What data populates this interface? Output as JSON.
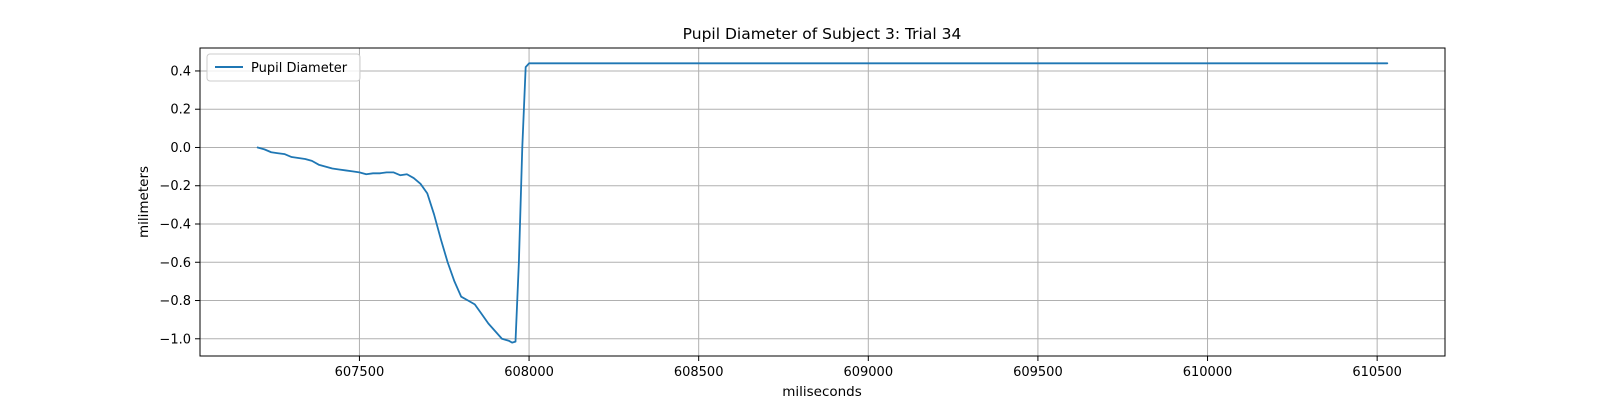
{
  "chart_data": {
    "type": "line",
    "title": "Pupil Diameter of Subject 3: Trial 34",
    "xlabel": "miliseconds",
    "ylabel": "milimeters",
    "xlim": [
      607030,
      610700
    ],
    "ylim": [
      -1.09,
      0.52
    ],
    "xticks": [
      607500,
      608000,
      608500,
      609000,
      609500,
      610000,
      610500
    ],
    "xtick_labels": [
      "607500",
      "608000",
      "608500",
      "609000",
      "609500",
      "610000",
      "610500"
    ],
    "yticks": [
      0.4,
      0.2,
      0.0,
      -0.2,
      -0.4,
      -0.6,
      -0.8,
      -1.0
    ],
    "ytick_labels": [
      "0.4",
      "0.2",
      "0.0",
      "−0.2",
      "−0.4",
      "−0.6",
      "−0.8",
      "−1.0"
    ],
    "grid": true,
    "legend_position": "top-left",
    "colors": {
      "series": "#1f77b4",
      "grid": "#b0b0b0",
      "axes": "#000000"
    },
    "series": [
      {
        "name": "Pupil Diameter",
        "x": [
          607200,
          607220,
          607240,
          607260,
          607280,
          607300,
          607320,
          607340,
          607360,
          607380,
          607400,
          607420,
          607440,
          607460,
          607480,
          607500,
          607520,
          607540,
          607560,
          607580,
          607600,
          607620,
          607640,
          607660,
          607680,
          607700,
          607720,
          607740,
          607760,
          607780,
          607800,
          607820,
          607840,
          607860,
          607880,
          607900,
          607920,
          607940,
          607950,
          607960,
          607970,
          607980,
          607990,
          608000,
          608020,
          608100,
          608500,
          609000,
          609500,
          610000,
          610530
        ],
        "y": [
          0.0,
          -0.01,
          -0.025,
          -0.03,
          -0.035,
          -0.05,
          -0.055,
          -0.06,
          -0.07,
          -0.09,
          -0.1,
          -0.11,
          -0.115,
          -0.12,
          -0.125,
          -0.13,
          -0.14,
          -0.135,
          -0.135,
          -0.13,
          -0.13,
          -0.145,
          -0.14,
          -0.16,
          -0.19,
          -0.24,
          -0.35,
          -0.48,
          -0.6,
          -0.7,
          -0.78,
          -0.8,
          -0.82,
          -0.87,
          -0.92,
          -0.96,
          -1.0,
          -1.01,
          -1.02,
          -1.015,
          -0.6,
          0.0,
          0.42,
          0.44,
          0.44,
          0.44,
          0.44,
          0.44,
          0.44,
          0.44,
          0.44
        ]
      }
    ]
  }
}
